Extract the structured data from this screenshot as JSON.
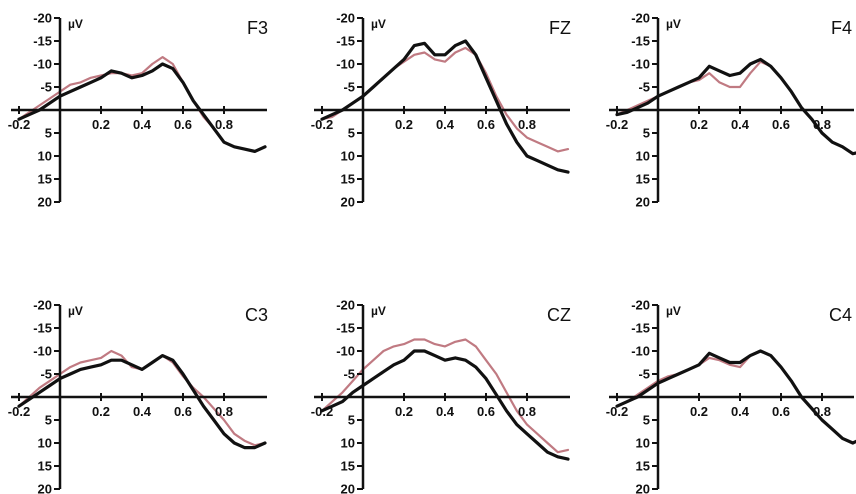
{
  "chart_data": {
    "type": "line",
    "unit": "µV",
    "x_ticks": [
      "-0.2",
      "0.2",
      "0.4",
      "0.6",
      "0.8"
    ],
    "y_ticks": [
      "-20",
      "-15",
      "-10",
      "-5",
      "5",
      "10",
      "15",
      "20"
    ],
    "xlim": [
      -0.2,
      1.0
    ],
    "ylim": [
      -20,
      20
    ],
    "y_inverted": true,
    "colors": {
      "black": "#111111",
      "pink": "#c07a82"
    },
    "panels": [
      {
        "title": "F3",
        "series": [
          {
            "color": "black",
            "x": [
              -0.2,
              -0.15,
              -0.1,
              -0.05,
              0,
              0.05,
              0.1,
              0.15,
              0.2,
              0.25,
              0.3,
              0.35,
              0.4,
              0.45,
              0.5,
              0.55,
              0.6,
              0.65,
              0.7,
              0.75,
              0.8,
              0.85,
              0.9,
              0.95,
              1.0
            ],
            "y": [
              2,
              1,
              0,
              -1.5,
              -3,
              -4,
              -5,
              -6,
              -7,
              -8.5,
              -8,
              -7,
              -7.5,
              -8.5,
              -10,
              -9,
              -6,
              -2,
              1,
              4,
              7,
              8,
              8.5,
              9,
              8
            ]
          },
          {
            "color": "pink",
            "x": [
              -0.2,
              -0.15,
              -0.1,
              -0.05,
              0,
              0.05,
              0.1,
              0.15,
              0.2,
              0.25,
              0.3,
              0.35,
              0.4,
              0.45,
              0.5,
              0.55,
              0.6,
              0.65,
              0.7,
              0.75,
              0.8,
              0.85,
              0.9,
              0.95,
              1.0
            ],
            "y": [
              2,
              0.5,
              -1,
              -2.5,
              -4,
              -5.5,
              -6,
              -7,
              -7.5,
              -8,
              -8,
              -7.5,
              -8,
              -10,
              -11.5,
              -10,
              -6,
              -2,
              1.5,
              4,
              7,
              8,
              8.5,
              9,
              8
            ]
          }
        ]
      },
      {
        "title": "FZ",
        "series": [
          {
            "color": "black",
            "x": [
              -0.2,
              -0.15,
              -0.1,
              -0.05,
              0,
              0.05,
              0.1,
              0.15,
              0.2,
              0.25,
              0.3,
              0.35,
              0.4,
              0.45,
              0.5,
              0.55,
              0.6,
              0.65,
              0.7,
              0.75,
              0.8,
              0.85,
              0.9,
              0.95,
              1.0
            ],
            "y": [
              2,
              1,
              0,
              -1.5,
              -3,
              -5,
              -7,
              -9,
              -11,
              -14,
              -14.5,
              -12,
              -12,
              -14,
              -15,
              -12,
              -7,
              -2,
              3,
              7,
              10,
              11,
              12,
              13,
              13.5
            ]
          },
          {
            "color": "pink",
            "x": [
              -0.2,
              -0.15,
              -0.1,
              -0.05,
              0,
              0.05,
              0.1,
              0.15,
              0.2,
              0.25,
              0.3,
              0.35,
              0.4,
              0.45,
              0.5,
              0.55,
              0.6,
              0.65,
              0.7,
              0.75,
              0.8,
              0.85,
              0.9,
              0.95,
              1.0
            ],
            "y": [
              2,
              1.5,
              0,
              -1.5,
              -3,
              -5,
              -7,
              -9,
              -10.5,
              -12,
              -12.5,
              -11,
              -10.5,
              -12.5,
              -13.5,
              -12,
              -8,
              -3,
              1,
              4,
              6,
              7,
              8,
              9,
              8.5
            ]
          }
        ]
      },
      {
        "title": "F4",
        "series": [
          {
            "color": "black",
            "x": [
              -0.2,
              -0.15,
              -0.1,
              -0.05,
              0,
              0.05,
              0.1,
              0.15,
              0.2,
              0.25,
              0.3,
              0.35,
              0.4,
              0.45,
              0.5,
              0.55,
              0.6,
              0.65,
              0.7,
              0.75,
              0.8,
              0.85,
              0.9,
              0.95,
              1.0
            ],
            "y": [
              1,
              0.5,
              -0.5,
              -1.5,
              -3,
              -4,
              -5,
              -6,
              -7,
              -9.5,
              -8.5,
              -7.5,
              -8,
              -10,
              -11,
              -9.5,
              -7,
              -4,
              -0.5,
              2,
              5,
              7,
              8,
              9.5,
              9
            ]
          },
          {
            "color": "pink",
            "x": [
              -0.2,
              -0.15,
              -0.1,
              -0.05,
              0,
              0.05,
              0.1,
              0.15,
              0.2,
              0.25,
              0.3,
              0.35,
              0.4,
              0.45,
              0.5,
              0.55,
              0.6,
              0.65,
              0.7,
              0.75,
              0.8,
              0.85,
              0.9,
              0.95,
              1.0
            ],
            "y": [
              1,
              0,
              -1,
              -2,
              -3,
              -4,
              -5,
              -6,
              -6.5,
              -8,
              -6,
              -5,
              -5,
              -8,
              -10.5,
              -9.5,
              -7,
              -4,
              -0.5,
              2,
              5,
              7,
              8,
              9.5,
              9
            ]
          }
        ]
      },
      {
        "title": "C3",
        "series": [
          {
            "color": "black",
            "x": [
              -0.2,
              -0.15,
              -0.1,
              -0.05,
              0,
              0.05,
              0.1,
              0.15,
              0.2,
              0.25,
              0.3,
              0.35,
              0.4,
              0.45,
              0.5,
              0.55,
              0.6,
              0.65,
              0.7,
              0.75,
              0.8,
              0.85,
              0.9,
              0.95,
              1.0
            ],
            "y": [
              2,
              0.5,
              -1,
              -2.5,
              -4,
              -5,
              -6,
              -6.5,
              -7,
              -8,
              -8,
              -7,
              -6,
              -7.5,
              -9,
              -8,
              -5,
              -1.5,
              2,
              5,
              8,
              10,
              11,
              11,
              10
            ]
          },
          {
            "color": "pink",
            "x": [
              -0.2,
              -0.15,
              -0.1,
              -0.05,
              0,
              0.05,
              0.1,
              0.15,
              0.2,
              0.25,
              0.3,
              0.35,
              0.4,
              0.45,
              0.5,
              0.55,
              0.6,
              0.65,
              0.7,
              0.75,
              0.8,
              0.85,
              0.9,
              0.95,
              1.0
            ],
            "y": [
              2,
              0,
              -2,
              -3.5,
              -5,
              -6.5,
              -7.5,
              -8,
              -8.5,
              -10,
              -9,
              -6.5,
              -6,
              -7.5,
              -9,
              -7.5,
              -4.5,
              -2,
              0,
              2.5,
              5,
              8,
              9.5,
              10.5,
              10
            ]
          }
        ]
      },
      {
        "title": "CZ",
        "series": [
          {
            "color": "black",
            "x": [
              -0.2,
              -0.15,
              -0.1,
              -0.05,
              0,
              0.05,
              0.1,
              0.15,
              0.2,
              0.25,
              0.3,
              0.35,
              0.4,
              0.45,
              0.5,
              0.55,
              0.6,
              0.65,
              0.7,
              0.75,
              0.8,
              0.85,
              0.9,
              0.95,
              1.0
            ],
            "y": [
              3,
              2,
              1,
              -1,
              -2.5,
              -4,
              -5.5,
              -7,
              -8,
              -10,
              -10,
              -9,
              -8,
              -8.5,
              -8,
              -6.5,
              -4,
              -0.5,
              3,
              6,
              8,
              10,
              12,
              13,
              13.5
            ]
          },
          {
            "color": "pink",
            "x": [
              -0.2,
              -0.15,
              -0.1,
              -0.05,
              0,
              0.05,
              0.1,
              0.15,
              0.2,
              0.25,
              0.3,
              0.35,
              0.4,
              0.45,
              0.5,
              0.55,
              0.6,
              0.65,
              0.7,
              0.75,
              0.8,
              0.85,
              0.9,
              0.95,
              1.0
            ],
            "y": [
              3,
              1,
              -1,
              -3.5,
              -6,
              -8,
              -10,
              -11,
              -11.5,
              -12.5,
              -12.5,
              -11.5,
              -11,
              -12,
              -12.5,
              -11,
              -8,
              -5,
              -1,
              3,
              6,
              8,
              10,
              12,
              11.5
            ]
          }
        ]
      },
      {
        "title": "C4",
        "series": [
          {
            "color": "black",
            "x": [
              -0.2,
              -0.15,
              -0.1,
              -0.05,
              0,
              0.05,
              0.1,
              0.15,
              0.2,
              0.25,
              0.3,
              0.35,
              0.4,
              0.45,
              0.5,
              0.55,
              0.6,
              0.65,
              0.7,
              0.75,
              0.8,
              0.85,
              0.9,
              0.95,
              1.0
            ],
            "y": [
              2,
              1,
              0,
              -1.5,
              -3,
              -4,
              -5,
              -6,
              -7,
              -9.5,
              -8.5,
              -7.5,
              -7.5,
              -9,
              -10,
              -9,
              -6.5,
              -3.5,
              0,
              2.5,
              5,
              7,
              9,
              10,
              9
            ]
          },
          {
            "color": "pink",
            "x": [
              -0.2,
              -0.15,
              -0.1,
              -0.05,
              0,
              0.05,
              0.1,
              0.15,
              0.2,
              0.25,
              0.3,
              0.35,
              0.4,
              0.45,
              0.5,
              0.55,
              0.6,
              0.65,
              0.7,
              0.75,
              0.8,
              0.85,
              0.9,
              0.95,
              1.0
            ],
            "y": [
              2,
              1,
              -0.5,
              -2,
              -3.5,
              -4.5,
              -5,
              -6,
              -7,
              -8.5,
              -8,
              -7,
              -6.5,
              -9,
              -10,
              -9,
              -6.5,
              -3.5,
              0,
              2.5,
              5,
              7,
              9,
              10,
              9
            ]
          }
        ]
      }
    ]
  }
}
